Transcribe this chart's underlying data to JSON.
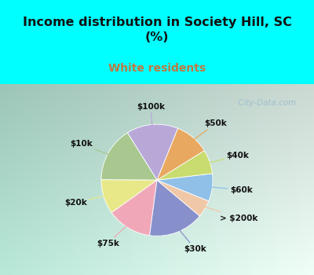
{
  "title": "Income distribution in Society Hill, SC\n(%)",
  "subtitle": "White residents",
  "title_color": "#111111",
  "subtitle_color": "#c07840",
  "background_top": "#00ffff",
  "background_chart_left": "#b8e8d8",
  "background_chart_right": "#eaf8f0",
  "labels": [
    "$100k",
    "$10k",
    "$20k",
    "$75k",
    "$30k",
    "> $200k",
    "$60k",
    "$40k",
    "$50k"
  ],
  "values": [
    15,
    16,
    10,
    13,
    16,
    5,
    8,
    7,
    10
  ],
  "colors": [
    "#b8a8d8",
    "#a8c890",
    "#e8e888",
    "#f0a8b8",
    "#8890cc",
    "#f0c8a8",
    "#90c0e8",
    "#c8dc70",
    "#e8a860"
  ],
  "startangle": 68,
  "watermark": " City-Data.com"
}
